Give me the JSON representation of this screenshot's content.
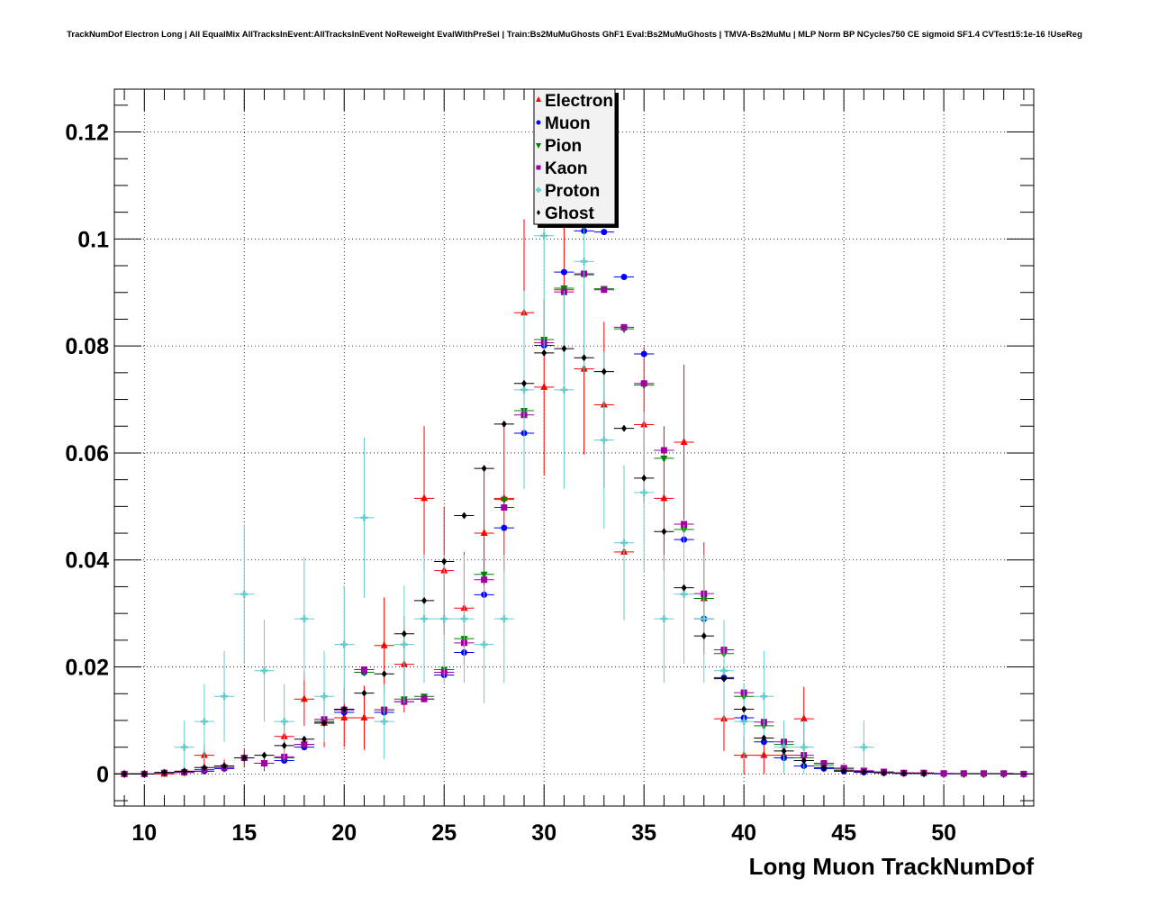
{
  "title": "TrackNumDof Electron Long | All EqualMix AllTracksInEvent:AllTracksInEvent NoReweight EvalWithPreSel | Train:Bs2MuMuGhosts GhF1 Eval:Bs2MuMuGhosts | TMVA-Bs2MuMu | MLP Norm BP NCycles750 CE sigmoid SF1.4 CVTest15:1e-16 !UseReg",
  "chart_data": {
    "type": "scatter",
    "title": "TrackNumDof Electron Long | All EqualMix AllTracksInEvent:AllTracksInEvent NoReweight EvalWithPreSel | Train:Bs2MuMuGhosts GhF1 Eval:Bs2MuMuGhosts | TMVA-Bs2MuMu | MLP Norm BP NCycles750 CE sigmoid SF1.4 CVTest15:1e-16 !UseReg",
    "xlabel": "Long Muon TrackNumDof",
    "ylabel": "",
    "xlim": [
      8.5,
      54.5
    ],
    "ylim": [
      -0.006,
      0.128
    ],
    "xticks": [
      10,
      15,
      20,
      25,
      30,
      35,
      40,
      45,
      50
    ],
    "xtick_labels": [
      "10",
      "15",
      "20",
      "25",
      "30",
      "35",
      "40",
      "45",
      "50"
    ],
    "yticks": [
      0,
      0.02,
      0.04,
      0.06,
      0.08,
      0.1,
      0.12
    ],
    "ytick_labels": [
      "0",
      "0.02",
      "0.04",
      "0.06",
      "0.08",
      "0.1",
      "0.12"
    ],
    "grid": true,
    "legend_position": "top-center",
    "series": [
      {
        "name": "Electron",
        "color": "#ff0000",
        "marker": "triangle-up",
        "x": [
          9,
          10,
          11,
          12,
          13,
          14,
          15,
          16,
          17,
          18,
          19,
          20,
          21,
          22,
          23,
          24,
          25,
          26,
          27,
          28,
          29,
          30,
          31,
          32,
          33,
          34,
          35,
          36,
          37,
          38,
          39,
          40,
          41,
          42,
          43
        ],
        "y": [
          0.0,
          0.0,
          0.0,
          0.0005,
          0.0035,
          0.0015,
          0.003,
          0.002,
          0.007,
          0.014,
          0.0095,
          0.0105,
          0.0105,
          0.024,
          0.0205,
          0.0515,
          0.038,
          0.031,
          0.045,
          0.0515,
          0.0862,
          0.0723,
          0.0905,
          0.0757,
          0.069,
          0.0415,
          0.0653,
          0.0515,
          0.062,
          0.0328,
          0.0103,
          0.0035,
          0.0035,
          0.0035,
          0.0103
        ],
        "err": [
          0.0,
          0.0,
          0.0,
          0.0005,
          0.002,
          0.0012,
          0.0018,
          0.0015,
          0.003,
          0.005,
          0.0045,
          0.0055,
          0.006,
          0.009,
          0.009,
          0.0135,
          0.012,
          0.0105,
          0.012,
          0.0135,
          0.0175,
          0.0165,
          0.0175,
          0.016,
          0.0155,
          0.0125,
          0.0145,
          0.0135,
          0.0145,
          0.0105,
          0.006,
          0.0035,
          0.0035,
          0.0035,
          0.006
        ]
      },
      {
        "name": "Muon",
        "color": "#0000ff",
        "marker": "circle",
        "x": [
          9,
          10,
          11,
          12,
          13,
          14,
          15,
          16,
          17,
          18,
          19,
          20,
          21,
          22,
          23,
          24,
          25,
          26,
          27,
          28,
          29,
          30,
          31,
          32,
          33,
          34,
          35,
          36,
          37,
          38,
          39,
          40,
          41,
          42,
          43,
          44,
          45,
          46,
          47,
          48,
          49,
          50,
          51,
          52,
          53,
          54
        ],
        "y": [
          0.0,
          0.0,
          0.0002,
          0.0003,
          0.0005,
          0.001,
          0.003,
          0.002,
          0.0025,
          0.005,
          0.0098,
          0.0115,
          0.019,
          0.0115,
          0.0135,
          0.014,
          0.0185,
          0.0227,
          0.0335,
          0.046,
          0.0637,
          0.0801,
          0.0938,
          0.1015,
          0.1013,
          0.0929,
          0.0785,
          0.0605,
          0.0438,
          0.029,
          0.018,
          0.0105,
          0.006,
          0.003,
          0.0015,
          0.001,
          0.0005,
          0.0003,
          0.0002,
          0.0001,
          0.0001,
          0.0,
          0.0,
          0.0,
          0.0,
          0.0
        ]
      },
      {
        "name": "Pion",
        "color": "#008000",
        "marker": "triangle-down",
        "x": [
          9,
          10,
          11,
          12,
          13,
          14,
          15,
          16,
          17,
          18,
          19,
          20,
          21,
          22,
          23,
          24,
          25,
          26,
          27,
          28,
          29,
          30,
          31,
          32,
          33,
          34,
          35,
          36,
          37,
          38,
          39,
          40,
          41,
          42,
          43,
          44,
          45,
          46,
          47,
          48,
          49,
          50,
          51,
          52,
          53,
          54
        ],
        "y": [
          0.0,
          0.0,
          0.0002,
          0.0003,
          0.0008,
          0.0012,
          0.003,
          0.002,
          0.003,
          0.0055,
          0.0098,
          0.012,
          0.019,
          0.012,
          0.014,
          0.0145,
          0.0195,
          0.0253,
          0.0373,
          0.0513,
          0.0679,
          0.0812,
          0.0908,
          0.0933,
          0.0907,
          0.0832,
          0.0727,
          0.059,
          0.0457,
          0.0328,
          0.0225,
          0.0145,
          0.009,
          0.0055,
          0.003,
          0.0017,
          0.0009,
          0.0005,
          0.0003,
          0.0002,
          0.0001,
          0.0001,
          0.0,
          0.0,
          0.0,
          0.0
        ]
      },
      {
        "name": "Kaon",
        "color": "#a000a0",
        "marker": "square",
        "x": [
          9,
          10,
          11,
          12,
          13,
          14,
          15,
          16,
          17,
          18,
          19,
          20,
          21,
          22,
          23,
          24,
          25,
          26,
          27,
          28,
          29,
          30,
          31,
          32,
          33,
          34,
          35,
          36,
          37,
          38,
          39,
          40,
          41,
          42,
          43,
          44,
          45,
          46,
          47,
          48,
          49,
          50,
          51,
          52,
          53,
          54
        ],
        "y": [
          0.0,
          0.0,
          0.0002,
          0.0003,
          0.0008,
          0.0012,
          0.003,
          0.002,
          0.0032,
          0.0055,
          0.0102,
          0.012,
          0.0195,
          0.012,
          0.0135,
          0.014,
          0.019,
          0.0245,
          0.0363,
          0.0498,
          0.0671,
          0.0806,
          0.0901,
          0.0935,
          0.0905,
          0.0835,
          0.073,
          0.0605,
          0.0467,
          0.0337,
          0.0232,
          0.0152,
          0.0097,
          0.006,
          0.0035,
          0.002,
          0.0011,
          0.0006,
          0.0004,
          0.0002,
          0.0002,
          0.0001,
          0.0001,
          0.0001,
          0.0001,
          0.0
        ]
      },
      {
        "name": "Proton",
        "color": "#66cccc",
        "marker": "plus",
        "x": [
          12,
          13,
          14,
          15,
          16,
          17,
          18,
          19,
          20,
          21,
          22,
          23,
          24,
          25,
          26,
          27,
          28,
          29,
          30,
          31,
          32,
          33,
          34,
          35,
          36,
          37,
          38,
          39,
          40,
          41,
          42,
          43,
          46
        ],
        "y": [
          0.005,
          0.0098,
          0.0145,
          0.0336,
          0.0193,
          0.0098,
          0.029,
          0.0145,
          0.0242,
          0.0479,
          0.0098,
          0.0242,
          0.029,
          0.029,
          0.029,
          0.0242,
          0.029,
          0.0718,
          0.1006,
          0.0718,
          0.0958,
          0.0624,
          0.0432,
          0.0526,
          0.029,
          0.0336,
          0.029,
          0.0193,
          0.0098,
          0.0145,
          0.005,
          0.005,
          0.005
        ],
        "err": [
          0.005,
          0.007,
          0.0085,
          0.013,
          0.0095,
          0.007,
          0.0115,
          0.0085,
          0.011,
          0.015,
          0.007,
          0.011,
          0.012,
          0.012,
          0.012,
          0.011,
          0.012,
          0.0185,
          0.0215,
          0.0185,
          0.0205,
          0.0165,
          0.0145,
          0.015,
          0.012,
          0.013,
          0.012,
          0.0095,
          0.007,
          0.0085,
          0.005,
          0.005,
          0.005
        ]
      },
      {
        "name": "Ghost",
        "color": "#000000",
        "marker": "diamond",
        "x": [
          9,
          10,
          11,
          12,
          13,
          14,
          15,
          16,
          17,
          18,
          19,
          20,
          21,
          22,
          23,
          24,
          25,
          26,
          27,
          28,
          29,
          30,
          31,
          32,
          33,
          34,
          35,
          36,
          37,
          38,
          39,
          40,
          41,
          42,
          43,
          44,
          45,
          46,
          47,
          48,
          49
        ],
        "y": [
          0.0,
          0.0,
          0.0003,
          0.0005,
          0.0012,
          0.0015,
          0.003,
          0.0035,
          0.0053,
          0.0065,
          0.0095,
          0.0121,
          0.0151,
          0.0187,
          0.0262,
          0.0324,
          0.0397,
          0.0483,
          0.0571,
          0.0654,
          0.073,
          0.0787,
          0.0795,
          0.0778,
          0.0752,
          0.0646,
          0.0553,
          0.0453,
          0.0348,
          0.0258,
          0.0178,
          0.0121,
          0.0067,
          0.0043,
          0.0025,
          0.0012,
          0.0006,
          0.0004,
          0.0002,
          0.0001,
          0.0001
        ]
      }
    ]
  }
}
